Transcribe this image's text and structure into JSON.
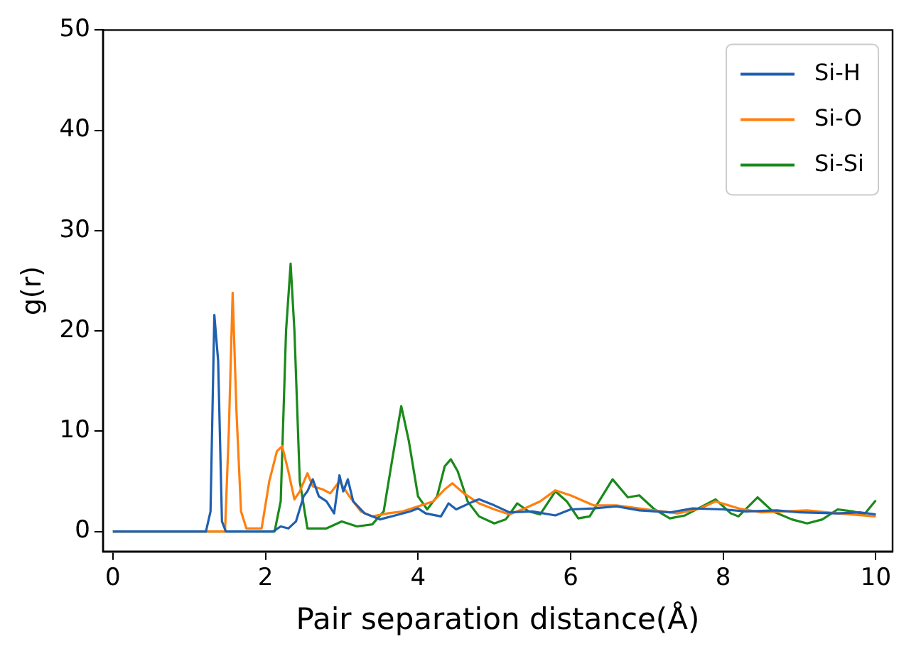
{
  "chart_data": {
    "type": "line",
    "xlabel": "Pair separation distance(Å)",
    "ylabel": "g(r)",
    "xlim": [
      -0.13,
      10.22
    ],
    "ylim": [
      -2,
      50
    ],
    "xticks": [
      0,
      2,
      4,
      6,
      8,
      10
    ],
    "yticks": [
      0,
      10,
      20,
      30,
      40,
      50
    ],
    "grid": false,
    "legend": "top right",
    "marker": "none",
    "line_style": "solid",
    "series": [
      {
        "name": "Si-H",
        "color": "#1f5fb0",
        "x": [
          0,
          1.22,
          1.28,
          1.33,
          1.38,
          1.43,
          1.48,
          2.1,
          2.2,
          2.3,
          2.4,
          2.5,
          2.55,
          2.62,
          2.7,
          2.8,
          2.9,
          2.97,
          3.02,
          3.08,
          3.15,
          3.3,
          3.5,
          3.7,
          3.9,
          4.0,
          4.1,
          4.3,
          4.4,
          4.5,
          4.7,
          4.8,
          5.0,
          5.2,
          5.5,
          5.8,
          6.0,
          6.3,
          6.6,
          6.9,
          7.3,
          7.6,
          8.0,
          8.3,
          8.7,
          9.0,
          9.5,
          9.8,
          10.0
        ],
        "values": [
          0,
          0,
          2,
          21.6,
          17,
          1,
          0,
          0,
          0.5,
          0.3,
          1,
          3.5,
          4,
          5.2,
          3.5,
          3,
          1.8,
          5.6,
          4,
          5.2,
          3,
          1.8,
          1.2,
          1.6,
          2,
          2.3,
          1.8,
          1.5,
          2.8,
          2.2,
          2.9,
          3.2,
          2.6,
          1.9,
          2,
          1.6,
          2.2,
          2.3,
          2.5,
          2.1,
          1.9,
          2.3,
          2.2,
          2,
          2.1,
          1.9,
          1.8,
          1.9,
          1.7
        ]
      },
      {
        "name": "Si-O",
        "color": "#ff7f0e",
        "x": [
          0,
          1.47,
          1.52,
          1.57,
          1.62,
          1.68,
          1.75,
          1.95,
          2.05,
          2.15,
          2.22,
          2.3,
          2.38,
          2.45,
          2.55,
          2.62,
          2.75,
          2.85,
          2.97,
          3.1,
          3.25,
          3.4,
          3.6,
          3.8,
          4.0,
          4.2,
          4.35,
          4.45,
          4.6,
          4.8,
          5.0,
          5.2,
          5.4,
          5.6,
          5.8,
          6.0,
          6.3,
          6.6,
          7.0,
          7.4,
          7.7,
          7.9,
          8.2,
          8.5,
          9.1,
          9.5,
          10.0
        ],
        "values": [
          0,
          0,
          10,
          23.8,
          12,
          2,
          0.3,
          0.3,
          5,
          8,
          8.5,
          6,
          3.2,
          4,
          5.8,
          4.5,
          4.2,
          3.8,
          5,
          3.5,
          2,
          1.5,
          1.8,
          2,
          2.5,
          3,
          4.2,
          4.8,
          3.8,
          2.8,
          2.2,
          1.7,
          2.3,
          3,
          4.1,
          3.6,
          2.6,
          2.6,
          2.2,
          1.8,
          2.3,
          3,
          2.3,
          1.9,
          2.1,
          1.8,
          1.5
        ]
      },
      {
        "name": "Si-Si",
        "color": "#1a8a1a",
        "x": [
          0,
          2.12,
          2.2,
          2.27,
          2.33,
          2.38,
          2.45,
          2.55,
          2.8,
          3.0,
          3.2,
          3.4,
          3.55,
          3.68,
          3.78,
          3.88,
          4.0,
          4.12,
          4.25,
          4.35,
          4.43,
          4.52,
          4.65,
          4.8,
          5.0,
          5.15,
          5.3,
          5.45,
          5.6,
          5.8,
          5.95,
          6.1,
          6.25,
          6.55,
          6.75,
          6.9,
          7.1,
          7.3,
          7.5,
          7.9,
          8.1,
          8.2,
          8.45,
          8.65,
          8.9,
          9.1,
          9.3,
          9.5,
          9.7,
          9.85,
          10.0
        ],
        "values": [
          0,
          0,
          3,
          20,
          26.7,
          20,
          5,
          0.3,
          0.3,
          1,
          0.5,
          0.7,
          2,
          8,
          12.5,
          9,
          3.5,
          2.2,
          3.5,
          6.5,
          7.2,
          6,
          3,
          1.5,
          0.8,
          1.2,
          2.8,
          2,
          1.7,
          4,
          3,
          1.3,
          1.5,
          5.2,
          3.4,
          3.6,
          2.2,
          1.3,
          1.6,
          3.2,
          1.8,
          1.5,
          3.4,
          2,
          1.2,
          0.8,
          1.2,
          2.2,
          2,
          1.7,
          3.1
        ]
      }
    ]
  }
}
